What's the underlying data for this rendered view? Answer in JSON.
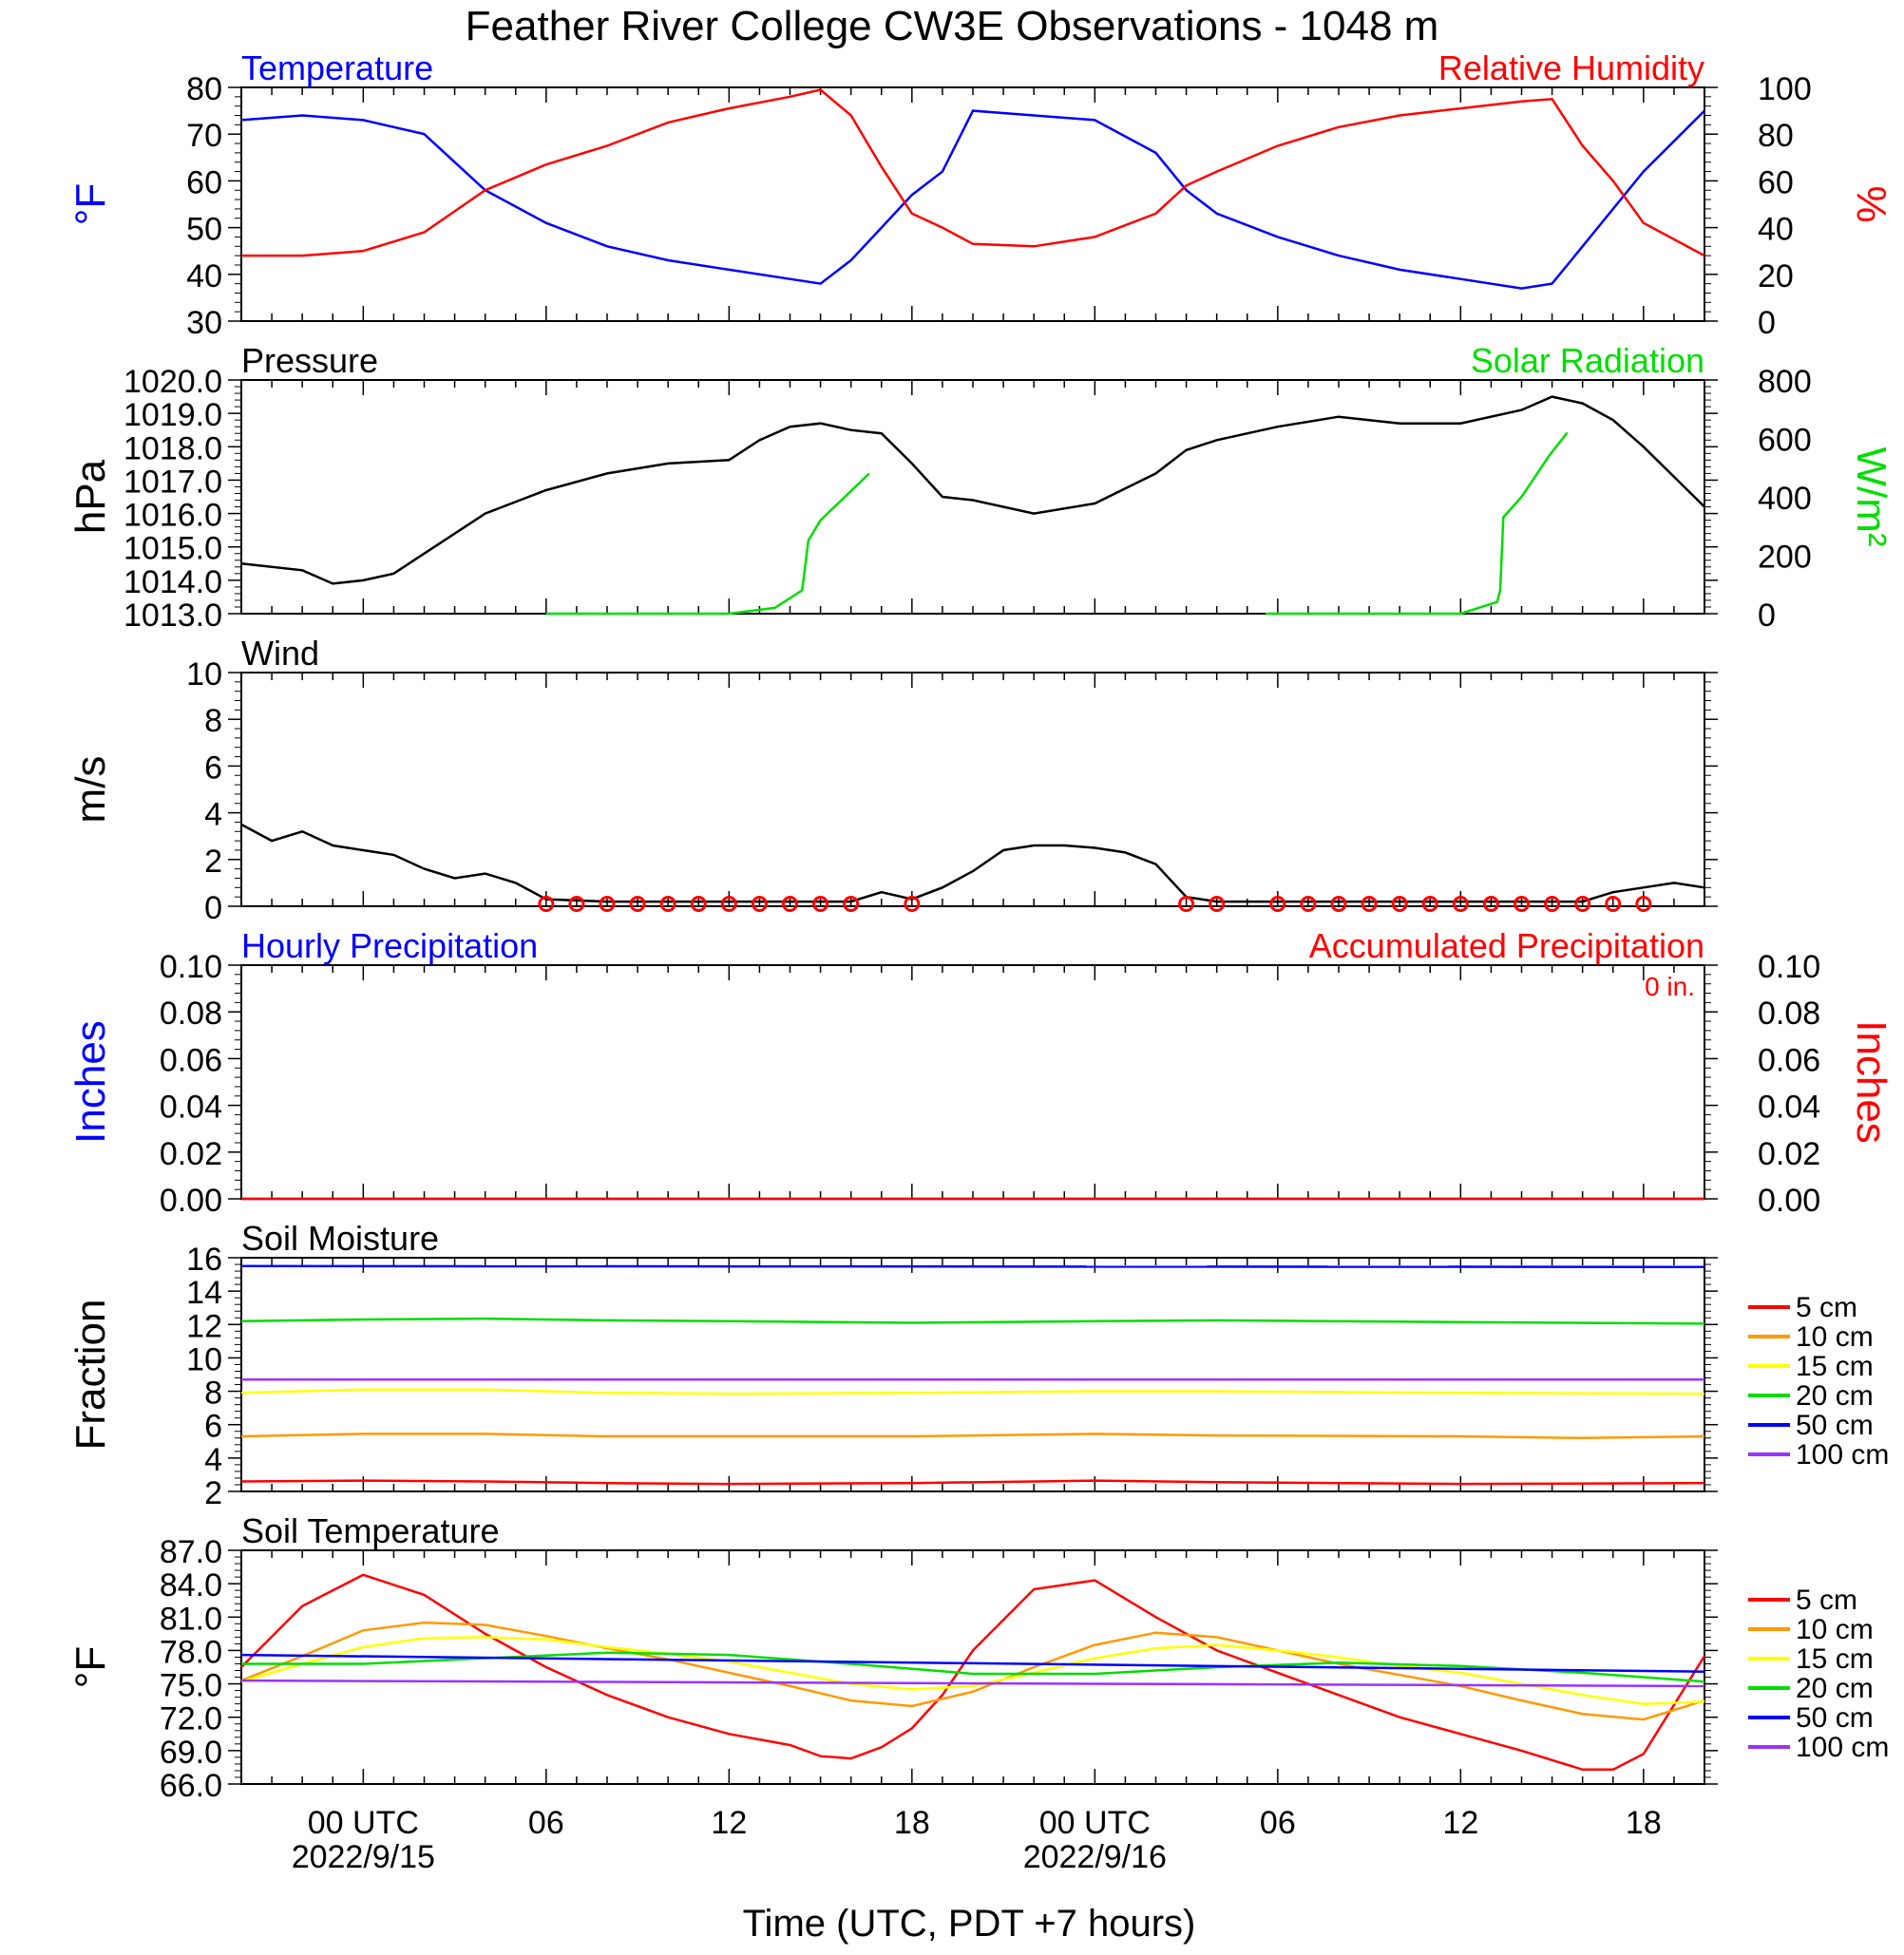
{
  "title": "Feather River College CW3E Observations - 1048 m",
  "xlabel": "Time (UTC, PDT +7 hours)",
  "time_ticks": [
    {
      "hour": 0,
      "label": "00 UTC",
      "date": "2022/9/15"
    },
    {
      "hour": 6,
      "label": "06",
      "date": ""
    },
    {
      "hour": 12,
      "label": "12",
      "date": ""
    },
    {
      "hour": 18,
      "label": "18",
      "date": ""
    },
    {
      "hour": 24,
      "label": "00 UTC",
      "date": "2022/9/16"
    },
    {
      "hour": 30,
      "label": "06",
      "date": ""
    },
    {
      "hour": 36,
      "label": "12",
      "date": ""
    },
    {
      "hour": 42,
      "label": "18",
      "date": ""
    }
  ],
  "colors": {
    "blue": "#0000ff",
    "red": "#ff0000",
    "green": "#00dd00",
    "orange": "#ff9900",
    "yellow": "#ffff00",
    "purple": "#9933ff",
    "black": "#000000"
  },
  "chart_data": [
    {
      "type": "line",
      "title_left": "Temperature",
      "title_right": "Relative Humidity",
      "ylabel_left": "°F",
      "ylabel_right": "%",
      "ylim_left": [
        30,
        80
      ],
      "ylim_right": [
        0,
        100
      ],
      "yticks_left": [
        "30",
        "40",
        "50",
        "60",
        "70",
        "80"
      ],
      "yticks_right": [
        "0",
        "20",
        "40",
        "60",
        "80",
        "100"
      ],
      "xlim_hours": [
        -4,
        44
      ],
      "series": [
        {
          "name": "Temperature",
          "axis": "left",
          "color": "#0000ff",
          "x": [
            -4,
            -2,
            0,
            2,
            4,
            6,
            8,
            10,
            12,
            14,
            15,
            16,
            17,
            18,
            19,
            20,
            22,
            24,
            26,
            27,
            28,
            30,
            32,
            34,
            36,
            38,
            39,
            40,
            42,
            44
          ],
          "y": [
            73,
            74,
            73,
            70,
            58,
            51,
            46,
            43,
            41,
            39,
            38,
            43,
            50,
            57,
            62,
            75,
            74,
            73,
            66,
            58,
            53,
            48,
            44,
            41,
            39,
            37,
            38,
            46,
            62,
            75
          ]
        },
        {
          "name": "Relative Humidity",
          "axis": "right",
          "color": "#ff0000",
          "x": [
            -4,
            -2,
            0,
            2,
            4,
            6,
            8,
            10,
            12,
            14,
            15,
            16,
            17,
            18,
            19,
            20,
            22,
            24,
            26,
            27,
            28,
            30,
            32,
            34,
            36,
            38,
            39,
            40,
            41,
            42,
            44
          ],
          "y": [
            28,
            28,
            30,
            38,
            56,
            67,
            75,
            85,
            91,
            96,
            99,
            88,
            66,
            46,
            40,
            33,
            32,
            36,
            46,
            58,
            64,
            75,
            83,
            88,
            91,
            94,
            95,
            75,
            60,
            42,
            28
          ]
        }
      ]
    },
    {
      "type": "line",
      "title_left": "Pressure",
      "title_right": "Solar Radiation",
      "ylabel_left": "hPa",
      "ylabel_right": "W/m²",
      "ylim_left": [
        1013,
        1020
      ],
      "ylim_right": [
        0,
        800
      ],
      "yticks_left": [
        "1013.0",
        "1014.0",
        "1015.0",
        "1016.0",
        "1017.0",
        "1018.0",
        "1019.0",
        "1020.0"
      ],
      "yticks_right": [
        "0",
        "200",
        "400",
        "600",
        "800"
      ],
      "series": [
        {
          "name": "Pressure",
          "axis": "left",
          "color": "#000000",
          "x": [
            -4,
            -2,
            -1,
            0,
            1,
            2,
            4,
            6,
            8,
            10,
            12,
            13,
            14,
            15,
            16,
            17,
            18,
            19,
            20,
            22,
            24,
            26,
            27,
            28,
            30,
            32,
            34,
            36,
            38,
            39,
            40,
            41,
            42,
            44
          ],
          "y": [
            1014.5,
            1014.3,
            1013.9,
            1014.0,
            1014.2,
            1014.8,
            1016.0,
            1016.7,
            1017.2,
            1017.5,
            1017.6,
            1018.2,
            1018.6,
            1018.7,
            1018.5,
            1018.4,
            1017.5,
            1016.5,
            1016.4,
            1016.0,
            1016.3,
            1017.2,
            1017.9,
            1018.2,
            1018.6,
            1018.9,
            1018.7,
            1018.7,
            1019.1,
            1019.5,
            1019.3,
            1018.8,
            1018.0,
            1016.2
          ]
        },
        {
          "name": "Solar Radiation",
          "axis": "right",
          "color": "#00dd00",
          "x": [
            6,
            12,
            13.5,
            14.4,
            14.6,
            15,
            16,
            16.6
          ],
          "y": [
            0,
            0,
            20,
            80,
            250,
            320,
            420,
            480
          ]
        },
        {
          "name": "Solar Radiation",
          "axis": "right",
          "color": "#00dd00",
          "x": [
            29.6,
            36,
            37.2,
            37.3,
            37.4,
            38,
            38.9,
            39.5
          ],
          "y": [
            0,
            0,
            40,
            80,
            330,
            400,
            540,
            620
          ]
        }
      ]
    },
    {
      "type": "line",
      "title_left": "Wind",
      "ylabel_left": "m/s",
      "ylim_left": [
        0,
        10
      ],
      "yticks_left": [
        "0",
        "2",
        "4",
        "6",
        "8",
        "10"
      ],
      "series": [
        {
          "name": "Wind",
          "axis": "left",
          "color": "#000000",
          "x": [
            -4,
            -3,
            -2,
            -1,
            0,
            1,
            2,
            3,
            4,
            5,
            6,
            8,
            10,
            12,
            14,
            16,
            17,
            18,
            19,
            20,
            21,
            22,
            23,
            24,
            25,
            26,
            27,
            28,
            30,
            32,
            34,
            36,
            38,
            40,
            41,
            42,
            43,
            44
          ],
          "y": [
            3.5,
            2.8,
            3.2,
            2.6,
            2.4,
            2.2,
            1.6,
            1.2,
            1.4,
            1.0,
            0.3,
            0.2,
            0.2,
            0.2,
            0.2,
            0.2,
            0.6,
            0.3,
            0.8,
            1.5,
            2.4,
            2.6,
            2.6,
            2.5,
            2.3,
            1.8,
            0.4,
            0.2,
            0.2,
            0.2,
            0.2,
            0.2,
            0.2,
            0.2,
            0.6,
            0.8,
            1.0,
            0.8
          ]
        }
      ],
      "calm_markers_hours": [
        6,
        7,
        8,
        9,
        10,
        11,
        12,
        13,
        14,
        15,
        16,
        18,
        27,
        28,
        30,
        31,
        32,
        33,
        34,
        35,
        36,
        37,
        38,
        39,
        40,
        41,
        42
      ]
    },
    {
      "type": "line",
      "title_left": "Hourly Precipitation",
      "title_right": "Accumulated Precipitation",
      "annotation": "0 in.",
      "ylabel_left": "Inches",
      "ylabel_right": "Inches",
      "ylim_left": [
        0,
        0.1
      ],
      "ylim_right": [
        0,
        0.1
      ],
      "yticks_left": [
        "0.00",
        "0.02",
        "0.04",
        "0.06",
        "0.08",
        "0.10"
      ],
      "yticks_right": [
        "0.00",
        "0.02",
        "0.04",
        "0.06",
        "0.08",
        "0.10"
      ],
      "series": [
        {
          "name": "Hourly Precipitation",
          "axis": "left",
          "color": "#0000ff",
          "x": [
            -4,
            44
          ],
          "y": [
            0,
            0
          ]
        },
        {
          "name": "Accumulated Precipitation",
          "axis": "right",
          "color": "#ff0000",
          "x": [
            -4,
            44
          ],
          "y": [
            0,
            0
          ]
        }
      ]
    },
    {
      "type": "line",
      "title_left": "Soil Moisture",
      "ylabel_left": "Fraction",
      "ylim_left": [
        2,
        16
      ],
      "yticks_left": [
        "2",
        "4",
        "6",
        "8",
        "10",
        "12",
        "14",
        "16"
      ],
      "series": [
        {
          "name": "5 cm",
          "color": "#ff0000",
          "x": [
            -4,
            0,
            4,
            8,
            12,
            18,
            24,
            28,
            36,
            44
          ],
          "y": [
            2.6,
            2.65,
            2.6,
            2.5,
            2.45,
            2.5,
            2.65,
            2.55,
            2.45,
            2.5
          ]
        },
        {
          "name": "10 cm",
          "color": "#ff9900",
          "x": [
            -4,
            0,
            4,
            8,
            12,
            18,
            24,
            28,
            36,
            40,
            44
          ],
          "y": [
            5.3,
            5.45,
            5.45,
            5.3,
            5.3,
            5.3,
            5.45,
            5.35,
            5.3,
            5.2,
            5.3
          ]
        },
        {
          "name": "15 cm",
          "color": "#ffff00",
          "x": [
            -4,
            0,
            4,
            8,
            12,
            18,
            24,
            28,
            36,
            44
          ],
          "y": [
            7.9,
            8.1,
            8.1,
            7.9,
            7.85,
            7.9,
            8.0,
            8.0,
            7.9,
            7.85
          ]
        },
        {
          "name": "20 cm",
          "color": "#00dd00",
          "x": [
            -4,
            0,
            4,
            8,
            12,
            18,
            24,
            28,
            36,
            44
          ],
          "y": [
            12.2,
            12.3,
            12.35,
            12.25,
            12.2,
            12.1,
            12.2,
            12.25,
            12.15,
            12.05
          ]
        },
        {
          "name": "50 cm",
          "color": "#0000ff",
          "x": [
            -4,
            44
          ],
          "y": [
            15.5,
            15.45
          ]
        },
        {
          "name": "100 cm",
          "color": "#9933ff",
          "x": [
            -4,
            44
          ],
          "y": [
            8.7,
            8.7
          ]
        }
      ]
    },
    {
      "type": "line",
      "title_left": "Soil Temperature",
      "ylabel_left": "°F",
      "ylim_left": [
        66,
        87
      ],
      "yticks_left": [
        "66.0",
        "69.0",
        "72.0",
        "75.0",
        "78.0",
        "81.0",
        "84.0",
        "87.0"
      ],
      "series": [
        {
          "name": "5 cm",
          "color": "#ff0000",
          "x": [
            -4,
            -2,
            0,
            2,
            4,
            6,
            8,
            10,
            12,
            14,
            15,
            16,
            17,
            18,
            19,
            20,
            22,
            24,
            26,
            28,
            30,
            32,
            34,
            36,
            38,
            40,
            41,
            42,
            44
          ],
          "y": [
            76.5,
            82,
            84.8,
            83,
            79.5,
            76.5,
            74,
            72,
            70.5,
            69.5,
            68.5,
            68.3,
            69.3,
            71,
            74,
            78,
            83.5,
            84.3,
            81,
            78,
            76,
            74,
            72,
            70.5,
            69,
            67.3,
            67.3,
            68.7,
            77.5
          ]
        },
        {
          "name": "10 cm",
          "color": "#ff9900",
          "x": [
            -4,
            -2,
            0,
            2,
            4,
            6,
            8,
            10,
            12,
            14,
            16,
            18,
            20,
            22,
            24,
            26,
            28,
            30,
            32,
            34,
            36,
            38,
            40,
            42,
            44
          ],
          "y": [
            75.3,
            77.5,
            79.8,
            80.5,
            80.3,
            79.3,
            78.2,
            77.2,
            76,
            74.8,
            73.5,
            73,
            74.3,
            76.5,
            78.5,
            79.6,
            79.2,
            78,
            76.8,
            75.8,
            74.8,
            73.5,
            72.3,
            71.8,
            73.5
          ]
        },
        {
          "name": "15 cm",
          "color": "#ffff00",
          "x": [
            -4,
            -2,
            0,
            2,
            4,
            6,
            8,
            10,
            12,
            14,
            16,
            18,
            20,
            22,
            24,
            26,
            28,
            30,
            32,
            34,
            36,
            38,
            40,
            42,
            44
          ],
          "y": [
            75.2,
            76.8,
            78.3,
            79.1,
            79.2,
            79.0,
            78.3,
            77.7,
            77.0,
            76.0,
            75.0,
            74.5,
            74.8,
            76.0,
            77.3,
            78.2,
            78.5,
            78.0,
            77.4,
            76.6,
            76.0,
            75.0,
            74.0,
            73.2,
            73.4
          ]
        },
        {
          "name": "20 cm",
          "color": "#00dd00",
          "x": [
            -4,
            0,
            4,
            8,
            12,
            16,
            20,
            24,
            28,
            32,
            36,
            40,
            44
          ],
          "y": [
            76.8,
            76.8,
            77.3,
            77.8,
            77.6,
            76.8,
            75.9,
            75.9,
            76.5,
            76.9,
            76.6,
            76.0,
            75.2
          ]
        },
        {
          "name": "50 cm",
          "color": "#0000ff",
          "x": [
            -4,
            44
          ],
          "y": [
            77.6,
            76.1
          ]
        },
        {
          "name": "100 cm",
          "color": "#9933ff",
          "x": [
            -4,
            44
          ],
          "y": [
            75.3,
            74.8
          ]
        }
      ],
      "legend": [
        "5 cm",
        "10 cm",
        "15 cm",
        "20 cm",
        "50 cm",
        "100 cm"
      ]
    }
  ],
  "legend_labels": [
    "5 cm",
    "10 cm",
    "15 cm",
    "20 cm",
    "50 cm",
    "100 cm"
  ],
  "legend_colors": [
    "#ff0000",
    "#ff9900",
    "#ffff00",
    "#00dd00",
    "#0000ff",
    "#9933ff"
  ]
}
